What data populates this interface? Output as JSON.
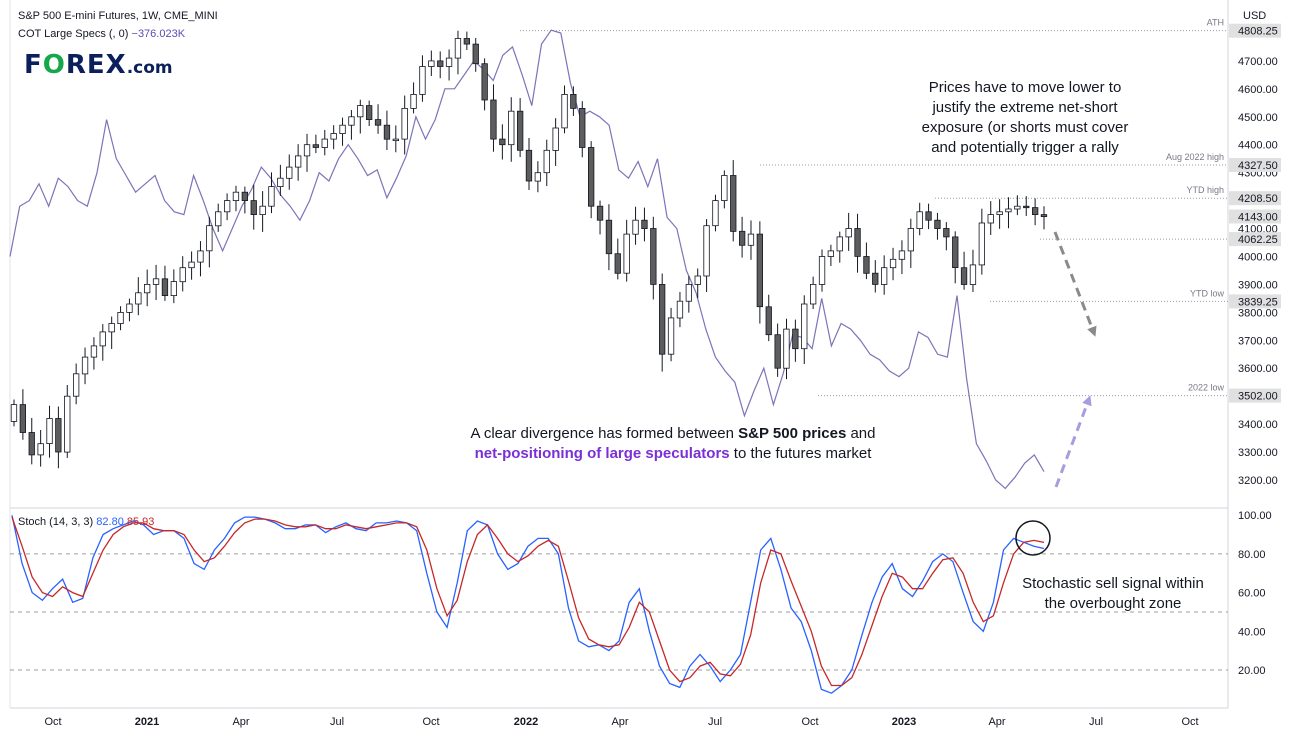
{
  "header": {
    "title": "S&P 500 E-mini Futures, 1W, CME_MINI",
    "cot_label": "COT Large Specs (, 0)",
    "cot_value": "−376.023K",
    "currency": "USD"
  },
  "logo": {
    "brand_part1": "F",
    "brand_o": "O",
    "brand_part2": "REX",
    "brand_suffix": ".com"
  },
  "annotations": {
    "top_right": [
      "Prices have to move lower to",
      "justify the extreme net-short",
      "exposure (or shorts must cover",
      "and potentially trigger a rally"
    ],
    "divergence_line1_a": "A clear divergence has formed between ",
    "divergence_line1_b": "S&P 500 prices",
    "divergence_line1_c": " and",
    "divergence_line2_a": "net-positioning of large speculators",
    "divergence_line2_b": " to the futures market",
    "stoch_note": [
      "Stochastic sell signal within",
      "the overbought zone"
    ]
  },
  "stoch_header": {
    "label": "Stoch (14, 3, 3)",
    "k_value": "82.80",
    "d_value": "85.93"
  },
  "colors": {
    "price_line": "#7b74b8",
    "stoch_k": "#2962ff",
    "stoch_d": "#c62828",
    "ref_line": "#9e9e9e",
    "arrow_down": "#8a8a8a",
    "arrow_up": "#a99be0",
    "label_bg": "#e0e0e0"
  },
  "chart_data": [
    {
      "type": "candlestick",
      "title": "S&P 500 E-mini Futures, 1W, CME_MINI",
      "x_ticks": [
        "Oct",
        "2021",
        "Apr",
        "Jul",
        "Oct",
        "2022",
        "Apr",
        "Jul",
        "Oct",
        "2023",
        "Apr",
        "Jul",
        "Oct"
      ],
      "y_ticks": [
        "4700.00",
        "4600.00",
        "4500.00",
        "4400.00",
        "4300.00",
        "4200.00",
        "4100.00",
        "4000.00",
        "3900.00",
        "3800.00",
        "3700.00",
        "3600.00",
        "3500.00",
        "3400.00",
        "3300.00",
        "3200.00"
      ],
      "ylim": [
        3160,
        4830
      ],
      "price_labels": [
        {
          "name": "ATH",
          "value": 4808.25,
          "text": "4808.25"
        },
        {
          "name": "Aug 2022 high",
          "value": 4327.5,
          "text": "4327.50"
        },
        {
          "name": "YTD high",
          "value": 4208.5,
          "text": "4208.50"
        },
        {
          "name": "",
          "value": 4143.0,
          "text": "4143.00"
        },
        {
          "name": "",
          "value": 4062.25,
          "text": "4062.25"
        },
        {
          "name": "YTD low",
          "value": 3839.25,
          "text": "3839.25"
        },
        {
          "name": "2022 low",
          "value": 3502.0,
          "text": "3502.00"
        }
      ],
      "close_series": [
        3470,
        3370,
        3290,
        3330,
        3420,
        3300,
        3500,
        3580,
        3640,
        3680,
        3730,
        3760,
        3800,
        3830,
        3870,
        3900,
        3920,
        3860,
        3910,
        3960,
        3980,
        4020,
        4110,
        4160,
        4200,
        4230,
        4200,
        4150,
        4180,
        4250,
        4280,
        4320,
        4360,
        4400,
        4390,
        4420,
        4440,
        4470,
        4500,
        4540,
        4490,
        4470,
        4420,
        4420,
        4530,
        4580,
        4680,
        4700,
        4680,
        4710,
        4780,
        4760,
        4690,
        4560,
        4420,
        4400,
        4520,
        4380,
        4270,
        4300,
        4380,
        4460,
        4580,
        4530,
        4390,
        4180,
        4130,
        4010,
        3940,
        4080,
        4130,
        4100,
        3900,
        3650,
        3780,
        3840,
        3900,
        3930,
        4110,
        4200,
        4290,
        4090,
        4040,
        4080,
        3820,
        3720,
        3600,
        3740,
        3670,
        3830,
        3900,
        4000,
        4020,
        4070,
        4100,
        4000,
        3940,
        3900,
        3960,
        3990,
        4020,
        4100,
        4160,
        4130,
        4100,
        4070,
        3960,
        3900,
        3970,
        4120,
        4150,
        4160,
        4170,
        4180,
        4175,
        4150,
        4143
      ]
    },
    {
      "type": "line",
      "title": "COT Large Specs (, 0)",
      "last_value": "−376.023K",
      "note": "values in chart price-axis units",
      "series": [
        4000,
        4180,
        4200,
        4260,
        4180,
        4280,
        4250,
        4200,
        4180,
        4300,
        4490,
        4350,
        4290,
        4230,
        4260,
        4290,
        4200,
        4160,
        4150,
        4290,
        4200,
        4100,
        4020,
        4100,
        4180,
        4240,
        4320,
        4280,
        4220,
        4180,
        4130,
        4200,
        4300,
        4270,
        4350,
        4400,
        4350,
        4290,
        4310,
        4210,
        4280,
        4360,
        4500,
        4420,
        4490,
        4600,
        4600,
        4650,
        4700,
        4670,
        4630,
        4720,
        4750,
        4650,
        4540,
        4760,
        4810,
        4800,
        4620,
        4500,
        4520,
        4500,
        4470,
        4310,
        4280,
        4340,
        4250,
        4350,
        4140,
        4100,
        3950,
        3870,
        3740,
        3640,
        3590,
        3550,
        3430,
        3520,
        3600,
        3470,
        3580,
        3720,
        3710,
        3670,
        3850,
        3680,
        3760,
        3740,
        3700,
        3650,
        3630,
        3590,
        3570,
        3600,
        3730,
        3710,
        3650,
        3640,
        3860,
        3560,
        3330,
        3270,
        3200,
        3170,
        3210,
        3260,
        3290,
        3230
      ]
    },
    {
      "type": "line",
      "title": "Stoch (14, 3, 3)",
      "ylim": [
        0,
        100
      ],
      "y_ticks": [
        "100.00",
        "80.00",
        "60.00",
        "40.00",
        "20.00"
      ],
      "series": [
        {
          "name": "",
          "values": [
            100,
            75,
            60,
            56,
            62,
            67,
            55,
            57,
            78,
            90,
            93,
            95,
            97,
            95,
            90,
            92,
            92,
            88,
            75,
            72,
            82,
            88,
            96,
            99,
            99,
            98,
            96,
            93,
            93,
            95,
            95,
            91,
            94,
            96,
            93,
            92,
            96,
            96,
            97,
            96,
            92,
            70,
            50,
            42,
            65,
            92,
            97,
            95,
            80,
            72,
            75,
            84,
            88,
            88,
            80,
            52,
            35,
            32,
            33,
            30,
            35,
            55,
            62,
            40,
            22,
            13,
            11,
            22,
            28,
            22,
            14,
            20,
            28,
            55,
            82,
            88,
            72,
            52,
            45,
            30,
            10,
            8,
            12,
            20,
            38,
            55,
            68,
            75,
            62,
            58,
            66,
            76,
            80,
            76,
            60,
            45,
            40,
            55,
            82,
            88,
            86,
            84,
            82.8
          ]
        },
        {
          "name": "",
          "values": [
            99,
            84,
            68,
            60,
            58,
            63,
            60,
            58,
            70,
            82,
            90,
            94,
            96,
            96,
            93,
            92,
            92,
            90,
            82,
            76,
            78,
            84,
            91,
            96,
            98,
            98,
            97,
            95,
            94,
            94,
            95,
            93,
            93,
            95,
            94,
            93,
            94,
            95,
            96,
            96,
            94,
            82,
            62,
            48,
            56,
            76,
            90,
            95,
            88,
            80,
            76,
            79,
            84,
            87,
            84,
            66,
            47,
            36,
            33,
            32,
            33,
            42,
            55,
            50,
            35,
            20,
            14,
            16,
            22,
            24,
            18,
            17,
            23,
            38,
            65,
            82,
            80,
            66,
            53,
            40,
            22,
            12,
            12,
            16,
            28,
            43,
            58,
            70,
            68,
            62,
            62,
            70,
            77,
            78,
            70,
            55,
            45,
            48,
            65,
            80,
            86,
            87,
            85.93
          ]
        }
      ]
    }
  ]
}
